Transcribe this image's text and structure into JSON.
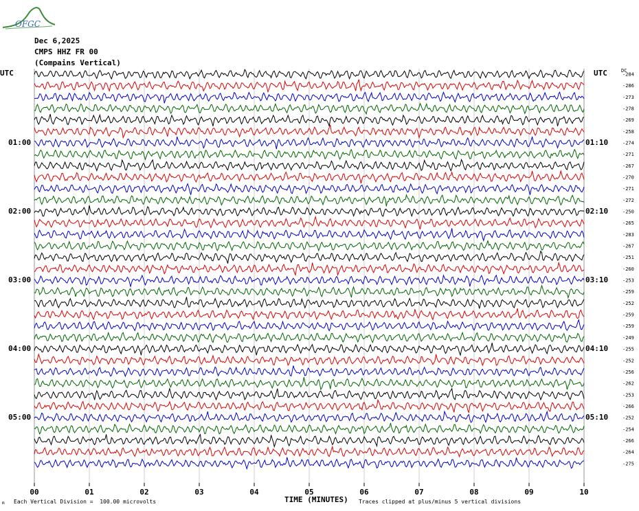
{
  "logo": {
    "text": "OFGC",
    "icon": "ofgc-logo-mountain-icon"
  },
  "header": {
    "date": "Dec 6,2025",
    "station": "CMPS HHZ FR 00",
    "description": "(Compains Vertical)"
  },
  "left_axis_label": "UTC",
  "right_axis_label": "UTC",
  "dc_label": "DC",
  "footer": {
    "scale": "Each Vertical Division =  100.00 microvolts",
    "clip": "Traces clipped at plus/minus 5 vertical divisions",
    "corner": "m"
  },
  "colors": {
    "trace_cycle": [
      "#000000",
      "#dd0000",
      "#0000cc",
      "#006600"
    ],
    "grid": "#999999"
  },
  "chart_data": {
    "type": "line",
    "subtype": "helicorder",
    "xlabel": "TIME (MINUTES)",
    "xlim": [
      0,
      10
    ],
    "x_ticks": [
      "00",
      "01",
      "02",
      "03",
      "04",
      "05",
      "06",
      "07",
      "08",
      "09",
      "10"
    ],
    "rows_per_hour": 6,
    "row_minutes": 10,
    "left_time_labels": [
      "01:00",
      "02:00",
      "03:00",
      "04:00",
      "05:00"
    ],
    "right_time_labels": [
      "01:10",
      "02:10",
      "03:10",
      "04:10",
      "05:10"
    ],
    "dc_offsets": [
      -284,
      -286,
      -273,
      -278,
      -269,
      -258,
      -274,
      -271,
      -267,
      -270,
      -271,
      -272,
      -250,
      -265,
      -283,
      -267,
      -251,
      -260,
      -253,
      -259,
      -252,
      -259,
      -259,
      -249,
      -255,
      -252,
      -256,
      -262,
      -253,
      -266,
      -252,
      -254,
      -266,
      -264,
      -275
    ],
    "grid": true
  }
}
